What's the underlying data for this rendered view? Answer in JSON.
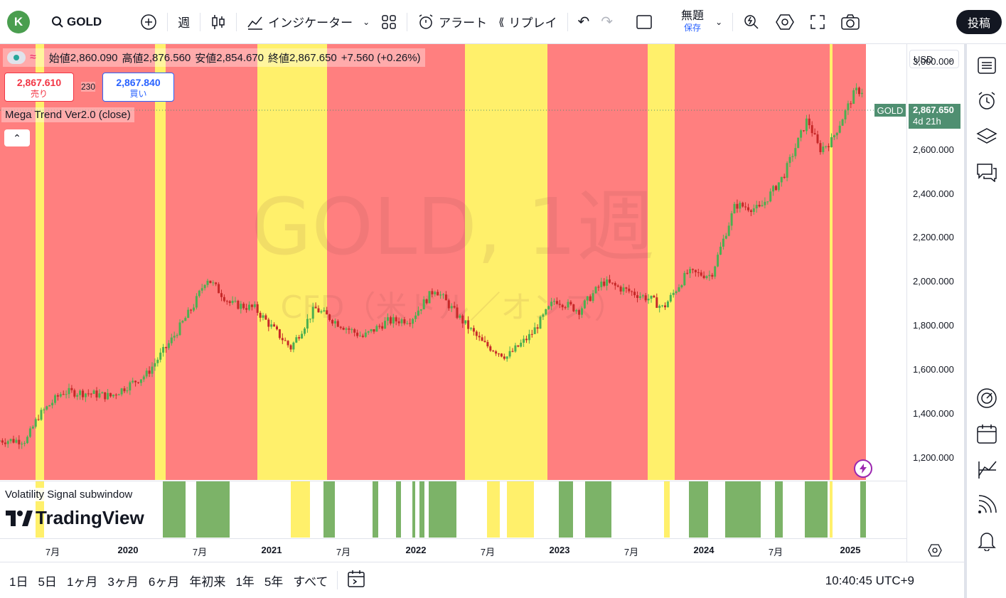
{
  "topbar": {
    "avatar_letter": "K",
    "symbol": "GOLD",
    "interval": "週",
    "indicators_label": "インジケーター",
    "alert_label": "アラート",
    "replay_label": "リプレイ",
    "layout_name": "無題",
    "save_label": "保存",
    "post_label": "投稿"
  },
  "legend": {
    "open_label": "始値",
    "open": "2,860.090",
    "high_label": "高値",
    "high": "2,876.560",
    "low_label": "安値",
    "low": "2,854.670",
    "close_label": "終値",
    "close": "2,867.650",
    "change": "+7.560 (+0.26%)"
  },
  "trade": {
    "sell_price": "2,867.610",
    "sell_label": "売り",
    "spread": "230",
    "buy_price": "2,867.840",
    "buy_label": "買い"
  },
  "indicator_name": "Mega Trend Ver2.0 (close)",
  "subwindow_label": "Volatility Signal subwindow",
  "watermark": {
    "line1": "GOLD, 1週",
    "line2": "CFD（米ドル／オンス）"
  },
  "tv_logo_text": "TradingView",
  "price_axis": {
    "currency": "USD",
    "labels": [
      "3,000.000",
      "2,800.000",
      "2,600.000",
      "2,400.000",
      "2,200.000",
      "2,000.000",
      "1,800.000",
      "1,600.000",
      "1,400.000",
      "1,200.000"
    ],
    "current_symbol": "GOLD",
    "current_price": "2,867.650",
    "countdown": "4d 21h"
  },
  "time_axis": {
    "labels": [
      {
        "text": "7月",
        "year": false
      },
      {
        "text": "2020",
        "year": true
      },
      {
        "text": "7月",
        "year": false
      },
      {
        "text": "2021",
        "year": true
      },
      {
        "text": "7月",
        "year": false
      },
      {
        "text": "2022",
        "year": true
      },
      {
        "text": "7月",
        "year": false
      },
      {
        "text": "2023",
        "year": true
      },
      {
        "text": "7月",
        "year": false
      },
      {
        "text": "2024",
        "year": true
      },
      {
        "text": "7月",
        "year": false
      },
      {
        "text": "2025",
        "year": true
      }
    ]
  },
  "bottom_bar": {
    "ranges": [
      "1日",
      "5日",
      "1ヶ月",
      "3ヶ月",
      "6ヶ月",
      "年初来",
      "1年",
      "5年",
      "すべて"
    ],
    "clock": "10:40:45 UTC+9"
  },
  "colors": {
    "bear_zone": "#ff7f7f",
    "neutral_zone": "#fff06b",
    "signal_green": "#7cb368",
    "signal_yellow": "#fff06b",
    "candle_up": "#4caf50",
    "candle_down": "#c62828"
  },
  "chart_data": {
    "type": "candlestick",
    "symbol": "GOLD",
    "interval": "1W",
    "ylim": [
      1100,
      3080
    ],
    "weekly_close_path": [
      [
        "2019-05",
        1280
      ],
      [
        "2019-06",
        1390
      ],
      [
        "2019-08",
        1500
      ],
      [
        "2019-10",
        1495
      ],
      [
        "2019-12",
        1480
      ],
      [
        "2020-03",
        1580
      ],
      [
        "2020-05",
        1730
      ],
      [
        "2020-07",
        1900
      ],
      [
        "2020-08",
        2020
      ],
      [
        "2020-10",
        1900
      ],
      [
        "2020-12",
        1880
      ],
      [
        "2021-03",
        1700
      ],
      [
        "2021-05",
        1880
      ],
      [
        "2021-07",
        1810
      ],
      [
        "2021-09",
        1750
      ],
      [
        "2021-11",
        1820
      ],
      [
        "2022-01",
        1830
      ],
      [
        "2022-03",
        1970
      ],
      [
        "2022-05",
        1840
      ],
      [
        "2022-07",
        1720
      ],
      [
        "2022-09",
        1660
      ],
      [
        "2022-11",
        1760
      ],
      [
        "2023-01",
        1920
      ],
      [
        "2023-03",
        1870
      ],
      [
        "2023-05",
        2000
      ],
      [
        "2023-07",
        1960
      ],
      [
        "2023-09",
        1920
      ],
      [
        "2023-10",
        1880
      ],
      [
        "2023-12",
        2040
      ],
      [
        "2024-02",
        2030
      ],
      [
        "2024-03",
        2190
      ],
      [
        "2024-04",
        2350
      ],
      [
        "2024-06",
        2330
      ],
      [
        "2024-08",
        2480
      ],
      [
        "2024-10",
        2740
      ],
      [
        "2024-11",
        2600
      ],
      [
        "2024-12",
        2640
      ],
      [
        "2025-02",
        2867.65
      ]
    ]
  }
}
